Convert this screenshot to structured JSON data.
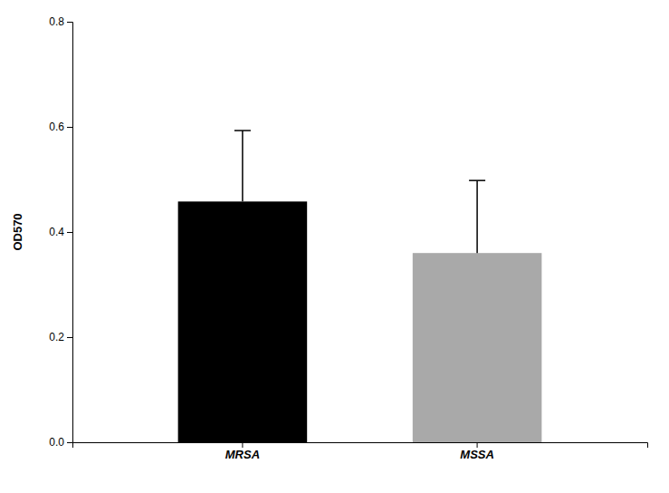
{
  "chart_data": {
    "type": "bar",
    "categories": [
      "MRSA",
      "MSSA"
    ],
    "values": [
      0.458,
      0.36
    ],
    "errors": [
      0.135,
      0.138
    ],
    "colors": [
      "#000000",
      "#a9a9a9"
    ],
    "ylabel": "OD570",
    "ylim": [
      0.0,
      0.8
    ],
    "yticks": [
      {
        "value": 0.0,
        "label": "0.0"
      },
      0.2,
      0.4,
      0.6,
      0.8
    ],
    "grid": false
  }
}
